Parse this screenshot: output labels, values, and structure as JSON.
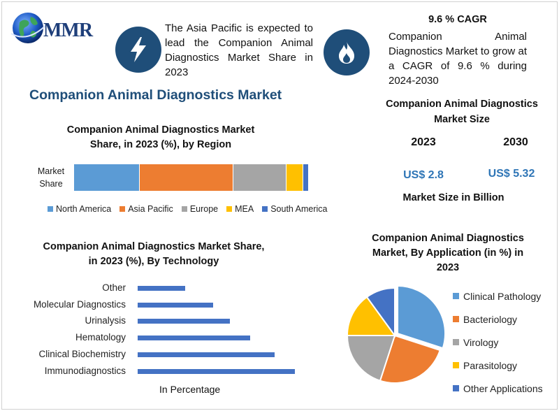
{
  "brand": {
    "logo_text": "MMR"
  },
  "intro": {
    "region_text": "The Asia Pacific is expected to lead the Companion Animal Diagnostics Market Share in 2023",
    "cagr_title": "9.6 % CAGR",
    "cagr_text": "Companion Animal Diagnostics Market to grow at a CAGR of 9.6 % during 2024-2030"
  },
  "main_title": "Companion Animal Diagnostics Market",
  "market_size": {
    "title": "Companion Animal Diagnostics Market Size",
    "years": [
      "2023",
      "2030"
    ],
    "values": [
      "US$ 2.8",
      "US$ 5.32"
    ],
    "caption": "Market Size in Billion"
  },
  "colors": {
    "blue": "#5b9bd5",
    "orange": "#ed7d31",
    "gray": "#a5a5a5",
    "gold": "#ffc000",
    "darkblue": "#4472c4",
    "title_blue": "#1f4e79"
  },
  "icons": {
    "left": "lightning-icon",
    "right": "flame-icon"
  },
  "chart_data": [
    {
      "type": "bar",
      "orientation": "horizontal-stacked",
      "title": "Companion Animal Diagnostics Market Share, in 2023 (%), by Region",
      "categories": [
        "Market Share"
      ],
      "series": [
        {
          "name": "North America",
          "values": [
            28
          ],
          "color": "#5b9bd5"
        },
        {
          "name": "Asia Pacific",
          "values": [
            40
          ],
          "color": "#ed7d31"
        },
        {
          "name": "Europe",
          "values": [
            22.5
          ],
          "color": "#a5a5a5"
        },
        {
          "name": "MEA",
          "values": [
            7
          ],
          "color": "#ffc000"
        },
        {
          "name": "South America",
          "values": [
            2.5
          ],
          "color": "#4472c4"
        }
      ],
      "legend": "bottom"
    },
    {
      "type": "bar",
      "orientation": "horizontal",
      "title": "Companion Animal Diagnostics Market Share, in 2023 (%), By Technology",
      "xlabel": "In Percentage",
      "categories": [
        "Other",
        "Molecular Diagnostics",
        "Urinalysis",
        "Hematology",
        "Clinical Biochemistry",
        "Immunodiagnostics"
      ],
      "values": [
        7,
        11,
        13.5,
        16.5,
        20,
        23
      ],
      "xlim": [
        0,
        30
      ],
      "color": "#4472c4"
    },
    {
      "type": "pie",
      "title": "Companion Animal Diagnostics Market, By Application (in %) in 2023",
      "categories": [
        "Clinical Pathology",
        "Bacteriology",
        "Virology",
        "Parasitology",
        "Other Applications"
      ],
      "values": [
        30,
        25,
        20,
        15,
        10
      ],
      "colors": [
        "#5b9bd5",
        "#ed7d31",
        "#a5a5a5",
        "#ffc000",
        "#4472c4"
      ],
      "exploded": "Clinical Pathology",
      "legend": "right"
    }
  ]
}
